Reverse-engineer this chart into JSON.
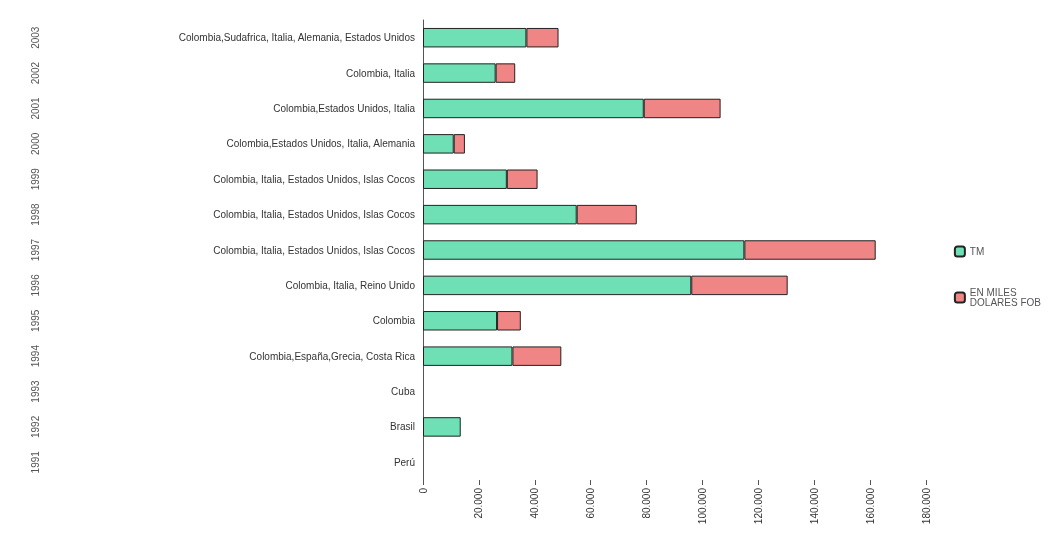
{
  "chart_data": {
    "type": "bar",
    "orientation": "horizontal",
    "stacked": true,
    "categories": [
      "Colombia,Sudafrica, Italia, Alemania, Estados Unidos",
      "Colombia, Italia",
      "Colombia,Estados Unidos, Italia",
      "Colombia,Estados Unidos, Italia, Alemania",
      "Colombia, Italia, Estados Unidos, Islas Cocos",
      "Colombia, Italia, Estados Unidos, Islas Cocos",
      "Colombia, Italia, Estados Unidos, Islas Cocos",
      "Colombia, Italia, Reino Unido",
      "Colombia",
      "Colombia,España,Grecia, Costa Rica",
      "Cuba",
      "Brasil",
      "Perú"
    ],
    "series": [
      {
        "name": "TM",
        "color": "#6fe0b6",
        "values": [
          37000,
          26000,
          79000,
          11000,
          30000,
          55000,
          115000,
          96000,
          26500,
          32000,
          null,
          13500,
          null
        ]
      },
      {
        "name": "EN MILES DOLARES FOB",
        "color": "#f08585",
        "values": [
          11500,
          7000,
          27500,
          4000,
          11000,
          21500,
          47000,
          34500,
          8500,
          17500,
          null,
          null,
          null
        ]
      }
    ],
    "annotations": [
      "2003",
      "2002",
      "2001",
      "2000",
      "1999",
      "1998",
      "1997",
      "1996",
      "1995",
      "1994",
      "1993",
      "1992",
      "1991"
    ],
    "xlim": [
      0,
      180000
    ],
    "xticks": [
      0,
      {
        "value": 20000,
        "label": "20.000"
      },
      {
        "value": 40000,
        "label": "40.000"
      },
      {
        "value": 60000,
        "label": "60.000"
      },
      {
        "value": 80000,
        "label": "80.000"
      },
      {
        "value": 100000,
        "label": "100.000"
      },
      {
        "value": 120000,
        "label": "120.000"
      },
      {
        "value": 140000,
        "label": "140.000"
      },
      {
        "value": 160000,
        "label": "160.000"
      },
      {
        "value": 180000,
        "label": "180.000"
      }
    ],
    "grid": false,
    "legend": "right"
  }
}
